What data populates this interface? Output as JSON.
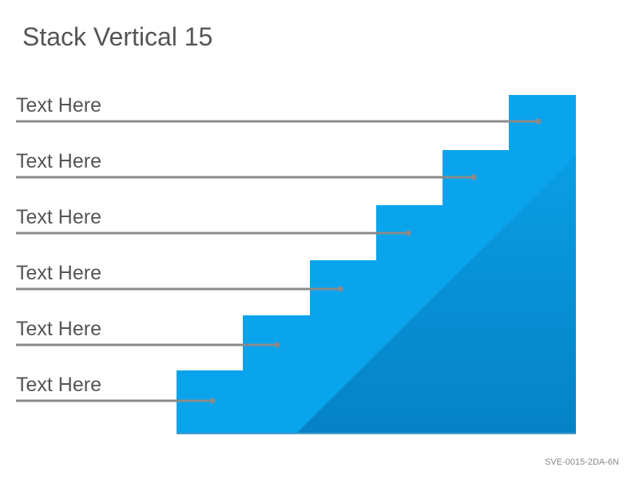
{
  "header": {
    "title": "Stack Vertical 15"
  },
  "steps": [
    {
      "label": "Text Here"
    },
    {
      "label": "Text Here"
    },
    {
      "label": "Text Here"
    },
    {
      "label": "Text Here"
    },
    {
      "label": "Text Here"
    },
    {
      "label": "Text Here"
    }
  ],
  "footer": {
    "code": "SVE-0015-2DA-6N"
  }
}
